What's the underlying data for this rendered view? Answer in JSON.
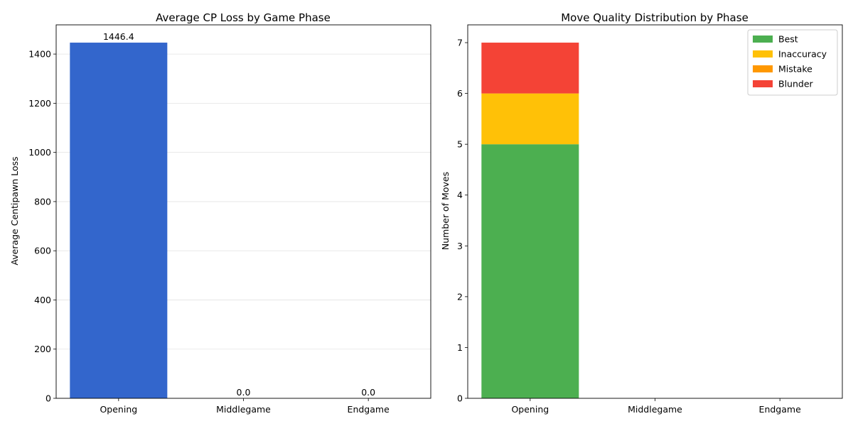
{
  "chart_data": [
    {
      "type": "bar",
      "title": "Average CP Loss by Game Phase",
      "xlabel": "",
      "ylabel": "Average Centipawn Loss",
      "categories": [
        "Opening",
        "Middlegame",
        "Endgame"
      ],
      "values": [
        1446.4,
        0.0,
        0.0
      ],
      "value_labels": [
        "1446.4",
        "0.0",
        "0.0"
      ],
      "ylim": [
        0,
        1518.72
      ],
      "yticks": [
        0,
        200,
        400,
        600,
        800,
        1000,
        1200,
        1400
      ],
      "grid": "y",
      "color": "#3366cc"
    },
    {
      "type": "bar",
      "stacked": true,
      "title": "Move Quality Distribution by Phase",
      "xlabel": "",
      "ylabel": "Number of Moves",
      "categories": [
        "Opening",
        "Middlegame",
        "Endgame"
      ],
      "series": [
        {
          "name": "Best",
          "values": [
            5,
            0,
            0
          ],
          "color": "#4caf50"
        },
        {
          "name": "Inaccuracy",
          "values": [
            1,
            0,
            0
          ],
          "color": "#ffc107"
        },
        {
          "name": "Mistake",
          "values": [
            0,
            0,
            0
          ],
          "color": "#ff9800"
        },
        {
          "name": "Blunder",
          "values": [
            1,
            0,
            0
          ],
          "color": "#f44336"
        }
      ],
      "ylim": [
        0,
        7.35
      ],
      "yticks": [
        0,
        1,
        2,
        3,
        4,
        5,
        6,
        7
      ],
      "grid": "none",
      "legend": "top-right"
    }
  ]
}
